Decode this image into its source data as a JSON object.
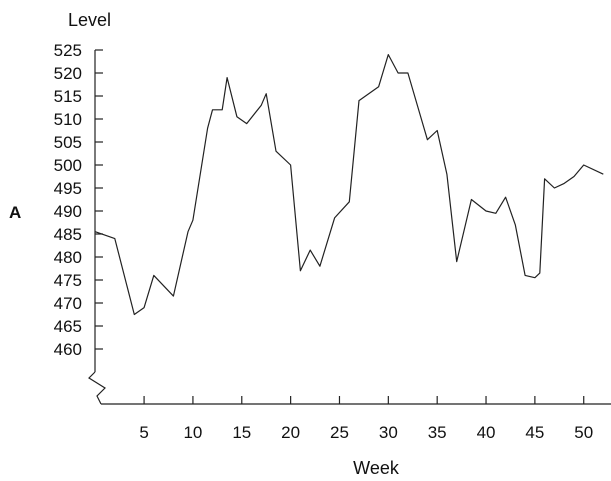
{
  "chart_data": {
    "type": "line",
    "panel_label": "A",
    "ylabel": "Level",
    "xlabel": "Week",
    "ylim": [
      455,
      525
    ],
    "xlim": [
      0,
      52
    ],
    "y_ticks": [
      460,
      465,
      470,
      475,
      480,
      485,
      490,
      495,
      500,
      505,
      510,
      515,
      520,
      525
    ],
    "x_ticks": [
      5,
      10,
      15,
      20,
      25,
      30,
      35,
      40,
      45,
      50
    ],
    "axis_break": true,
    "grid": false,
    "series": [
      {
        "x": [
          0,
          2,
          4,
          5,
          6,
          8,
          9.5,
          10,
          11.5,
          12,
          13,
          13.5,
          14.5,
          15.5,
          17,
          17.5,
          18.5,
          20,
          21,
          22,
          23,
          24.5,
          26,
          27,
          29,
          30,
          31,
          32,
          34,
          35,
          36,
          37,
          38.5,
          40,
          41,
          42,
          43,
          44,
          45,
          45.5,
          46,
          47,
          48,
          49,
          50,
          52
        ],
        "y": [
          485.5,
          484,
          467.5,
          469,
          476,
          471.5,
          485.5,
          488,
          508,
          512,
          512,
          519,
          510.5,
          509,
          513,
          515.5,
          503,
          500,
          477,
          481.5,
          478,
          488.5,
          492,
          514,
          517,
          524,
          520,
          520,
          505.5,
          507.5,
          498,
          479,
          492.5,
          490,
          489.5,
          493,
          487,
          476,
          475.5,
          476.5,
          497,
          495,
          496,
          497.5,
          500,
          498
        ]
      }
    ]
  }
}
